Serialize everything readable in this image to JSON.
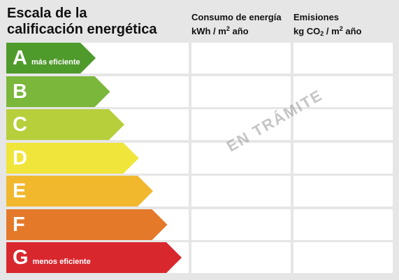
{
  "title": "Escala de la\ncalificación energética",
  "columns": {
    "consumption": {
      "label": "Consumo de energía",
      "unit_prefix": "kWh / m",
      "unit_sup": "2",
      "unit_suffix": " año"
    },
    "emissions": {
      "label": "Emisiones",
      "unit_prefix": "kg CO",
      "unit_sub": "2",
      "unit_mid": " / m",
      "unit_sup": "2",
      "unit_suffix": " año"
    }
  },
  "ratings": [
    {
      "letter": "A",
      "sublabel": "más eficiente",
      "color": "#4e9a2b",
      "level": 1
    },
    {
      "letter": "B",
      "sublabel": "",
      "color": "#7ab73a",
      "level": 2
    },
    {
      "letter": "C",
      "sublabel": "",
      "color": "#b6cf3a",
      "level": 3
    },
    {
      "letter": "D",
      "sublabel": "",
      "color": "#f0e53a",
      "level": 4
    },
    {
      "letter": "E",
      "sublabel": "",
      "color": "#f1b82e",
      "level": 5
    },
    {
      "letter": "F",
      "sublabel": "",
      "color": "#e5792a",
      "level": 6
    },
    {
      "letter": "G",
      "sublabel": "menos eficiente",
      "color": "#d9272e",
      "level": 7
    }
  ],
  "stamp": "EN TRÁMITE"
}
